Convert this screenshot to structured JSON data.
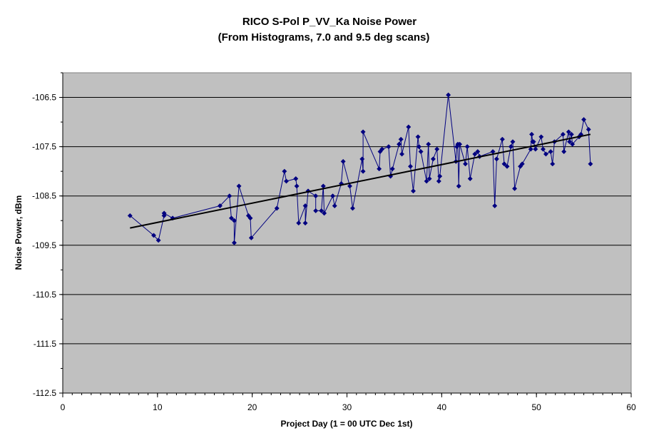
{
  "chart_data": {
    "type": "line",
    "title": "RICO S-Pol P_VV_Ka Noise Power",
    "subtitle": "(From Histograms, 7.0 and 9.5 deg scans)",
    "xlabel": "Project Day (1 = 00 UTC Dec 1st)",
    "ylabel": "Noise Power, dBm",
    "xlim": [
      0,
      60
    ],
    "ylim": [
      -112.5,
      -106
    ],
    "x_ticks": [
      0,
      10,
      20,
      30,
      40,
      50,
      60
    ],
    "x_tick_labels": [
      "0",
      "10",
      "20",
      "30",
      "40",
      "50",
      "60"
    ],
    "y_ticks": [
      -106.5,
      -107.5,
      -108.5,
      -109.5,
      -110.5,
      -111.5,
      -112.5
    ],
    "y_tick_labels": [
      "-106.5",
      "-107.5",
      "-108.5",
      "-109.5",
      "-110.5",
      "-111.5",
      "-112.5"
    ],
    "grid": "horizontal",
    "plot_background": "#C0C0C0",
    "series": [
      {
        "color": "#000080",
        "marker": "diamond",
        "x": [
          7.1,
          9.6,
          10.1,
          10.7,
          10.7,
          11.6,
          16.6,
          17.6,
          17.8,
          18.1,
          18.1,
          18.6,
          19.6,
          19.8,
          19.9,
          22.6,
          23.4,
          23.6,
          24.6,
          24.7,
          24.9,
          25.6,
          25.6,
          25.9,
          26.7,
          26.7,
          27.3,
          27.5,
          27.6,
          28.5,
          28.7,
          29.4,
          29.6,
          30.3,
          30.6,
          31.6,
          31.7,
          31.7,
          33.4,
          33.5,
          33.7,
          34.4,
          34.6,
          34.8,
          35.5,
          35.7,
          35.8,
          36.5,
          36.7,
          37.0,
          37.5,
          37.6,
          37.8,
          38.4,
          38.6,
          38.7,
          39.1,
          39.5,
          39.7,
          39.8,
          40.7,
          41.5,
          41.6,
          41.7,
          41.8,
          41.9,
          42.5,
          42.7,
          43.0,
          43.5,
          43.8,
          44.0,
          45.4,
          45.6,
          45.8,
          46.4,
          46.6,
          46.9,
          47.3,
          47.5,
          47.7,
          48.3,
          48.5,
          49.4,
          49.5,
          49.6,
          49.7,
          49.9,
          50.5,
          50.7,
          51.0,
          51.5,
          51.7,
          51.9,
          52.8,
          52.9,
          53.4,
          53.5,
          53.7,
          53.8,
          54.5,
          54.7,
          55.0,
          55.5,
          55.7
        ],
        "y": [
          -108.9,
          -109.3,
          -109.4,
          -108.9,
          -108.85,
          -108.95,
          -108.7,
          -108.5,
          -108.95,
          -109.0,
          -109.45,
          -108.3,
          -108.9,
          -108.95,
          -109.35,
          -108.75,
          -108.0,
          -108.2,
          -108.15,
          -108.3,
          -109.05,
          -108.7,
          -109.05,
          -108.4,
          -108.5,
          -108.8,
          -108.8,
          -108.3,
          -108.85,
          -108.5,
          -108.7,
          -108.25,
          -107.8,
          -108.3,
          -108.75,
          -107.75,
          -108.0,
          -107.2,
          -107.95,
          -107.6,
          -107.55,
          -107.5,
          -108.1,
          -107.95,
          -107.45,
          -107.35,
          -107.65,
          -107.1,
          -107.9,
          -108.4,
          -107.3,
          -107.5,
          -107.6,
          -108.2,
          -107.45,
          -108.15,
          -107.75,
          -107.55,
          -108.2,
          -108.1,
          -106.45,
          -107.8,
          -107.5,
          -107.45,
          -108.3,
          -107.45,
          -107.85,
          -107.5,
          -108.15,
          -107.65,
          -107.6,
          -107.7,
          -107.6,
          -108.7,
          -107.75,
          -107.35,
          -107.85,
          -107.9,
          -107.5,
          -107.4,
          -108.35,
          -107.9,
          -107.85,
          -107.55,
          -107.25,
          -107.4,
          -107.4,
          -107.55,
          -107.3,
          -107.55,
          -107.65,
          -107.6,
          -107.85,
          -107.4,
          -107.25,
          -107.6,
          -107.2,
          -107.4,
          -107.25,
          -107.45,
          -107.3,
          -107.25,
          -106.95,
          -107.15,
          -107.85
        ]
      },
      {
        "color": "#000000",
        "marker": "none",
        "x": [
          7.1,
          55.7
        ],
        "y": [
          -109.15,
          -107.25
        ]
      }
    ]
  }
}
